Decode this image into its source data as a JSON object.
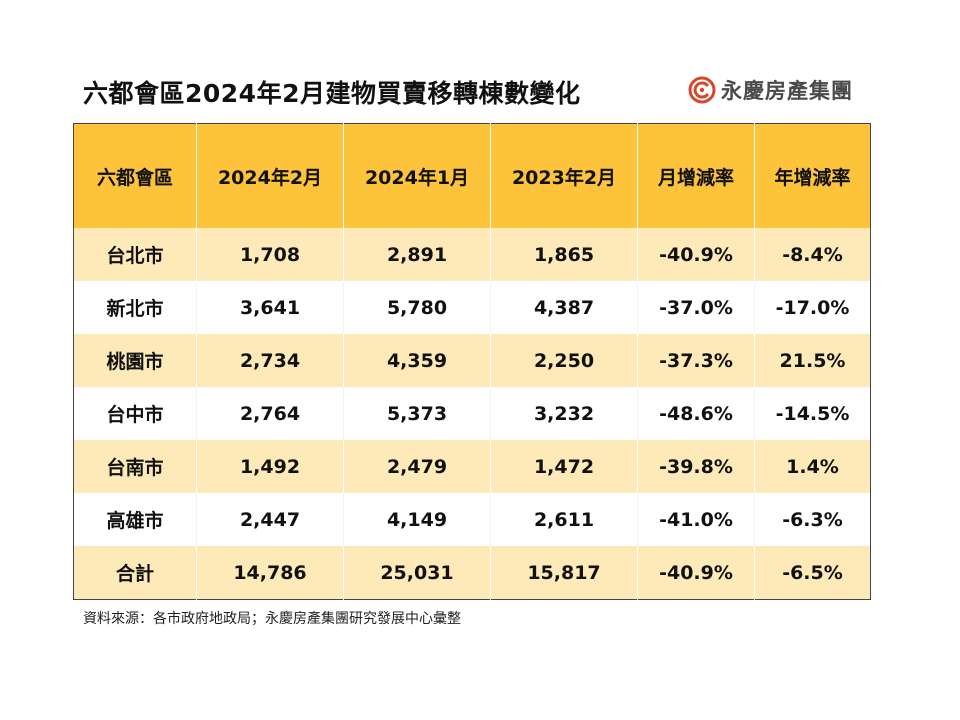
{
  "title": "六都會區2024年2月建物買賣移轉棟數變化",
  "brand": {
    "name": "永慶房產集團",
    "logo_icon": "yungching-logo-icon",
    "accent_color": "#d9472b"
  },
  "colors": {
    "header_bg": "#fcc33b",
    "row_shade_bg": "#fdeab8"
  },
  "table": {
    "headers": [
      "六都會區",
      "2024年2月",
      "2024年1月",
      "2023年2月",
      "月增減率",
      "年增減率"
    ],
    "rows": [
      [
        "台北市",
        "1,708",
        "2,891",
        "1,865",
        "-40.9%",
        "-8.4%"
      ],
      [
        "新北市",
        "3,641",
        "5,780",
        "4,387",
        "-37.0%",
        "-17.0%"
      ],
      [
        "桃園市",
        "2,734",
        "4,359",
        "2,250",
        "-37.3%",
        "21.5%"
      ],
      [
        "台中市",
        "2,764",
        "5,373",
        "3,232",
        "-48.6%",
        "-14.5%"
      ],
      [
        "台南市",
        "1,492",
        "2,479",
        "1,472",
        "-39.8%",
        "1.4%"
      ],
      [
        "高雄市",
        "2,447",
        "4,149",
        "2,611",
        "-41.0%",
        "-6.3%"
      ],
      [
        "合計",
        "14,786",
        "25,031",
        "15,817",
        "-40.9%",
        "-6.5%"
      ]
    ]
  },
  "source": "資料來源：各市政府地政局；永慶房產集團研究發展中心彙整"
}
